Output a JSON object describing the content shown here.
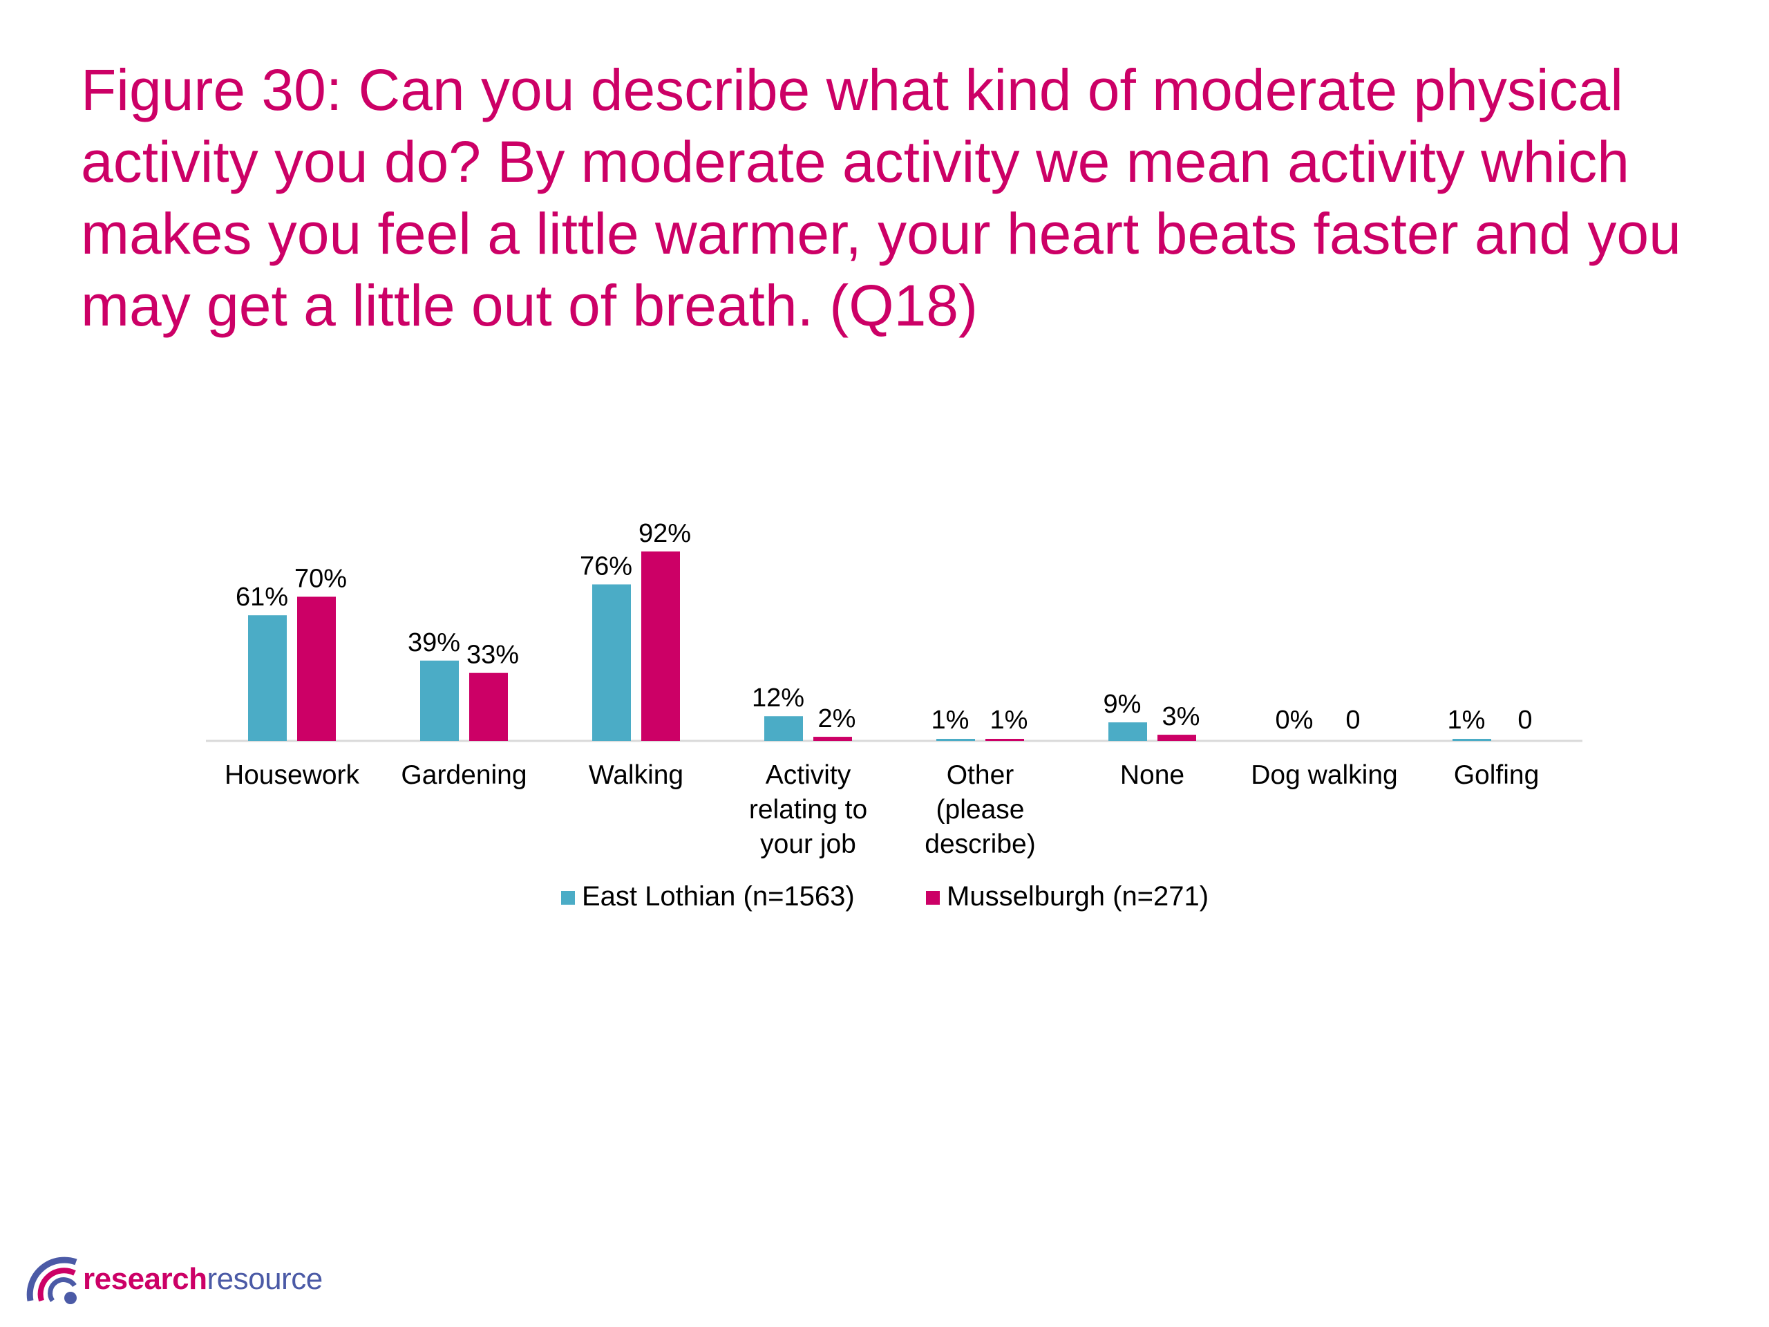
{
  "slide": {
    "title": "Figure 30: Can you describe what kind of moderate physical activity you do? By moderate activity we mean activity which makes you feel a little warmer, your heart beats faster and you may get a little out of breath. (Q18)"
  },
  "logo": {
    "part1": "research",
    "part2": "resource"
  },
  "colors": {
    "title": "#cc0066",
    "series1": "#4bacc6",
    "series2": "#cc0066",
    "axis": "#d9d9d9",
    "text": "#000000"
  },
  "chart_data": {
    "type": "bar",
    "title": "",
    "xlabel": "",
    "ylabel": "",
    "ylim": [
      0,
      100
    ],
    "grid": false,
    "legend_position": "bottom",
    "categories": [
      "Housework",
      "Gardening",
      "Walking",
      "Activity relating to your job",
      "Other (please describe)",
      "None",
      "Dog walking",
      "Golfing"
    ],
    "category_lines": [
      [
        "Housework"
      ],
      [
        "Gardening"
      ],
      [
        "Walking"
      ],
      [
        "Activity",
        "relating to",
        "your job"
      ],
      [
        "Other",
        "(please",
        "describe)"
      ],
      [
        "None"
      ],
      [
        "Dog walking"
      ],
      [
        "Golfing"
      ]
    ],
    "series": [
      {
        "name": "East Lothian (n=1563)",
        "color": "#4bacc6",
        "values": [
          61,
          39,
          76,
          12,
          1,
          9,
          0,
          1
        ],
        "labels": [
          "61%",
          "39%",
          "76%",
          "12%",
          "1%",
          "9%",
          "0%",
          "1%"
        ]
      },
      {
        "name": "Musselburgh (n=271)",
        "color": "#cc0066",
        "values": [
          70,
          33,
          92,
          2,
          1,
          3,
          0,
          0
        ],
        "labels": [
          "70%",
          "33%",
          "92%",
          "2%",
          "1%",
          "3%",
          "0",
          "0"
        ]
      }
    ]
  }
}
